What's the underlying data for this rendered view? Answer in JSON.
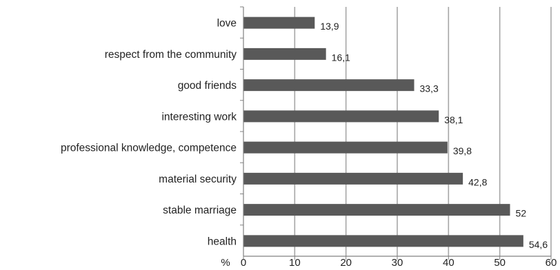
{
  "chart_data": {
    "type": "bar",
    "orientation": "horizontal",
    "categories": [
      "love",
      "respect from the community",
      "good friends",
      "interesting work",
      "professional knowledge, competence",
      "material security",
      "stable marriage",
      "health"
    ],
    "values": [
      13.9,
      16.1,
      33.3,
      38.1,
      39.8,
      42.8,
      52,
      54.6
    ],
    "data_labels": [
      "13,9",
      "16,1",
      "33,3",
      "38,1",
      "39,8",
      "42,8",
      "52",
      "54,6"
    ],
    "x_ticks": [
      "0",
      "10",
      "20",
      "30",
      "40",
      "50",
      "60"
    ],
    "xlim": [
      0,
      60
    ],
    "x_unit_label": "%",
    "title": "",
    "xlabel": "",
    "ylabel": "",
    "grid": "vertical",
    "legend": "none",
    "colors": {
      "bar": "#595959",
      "grid": "#a6a6a6",
      "axis": "#808080",
      "text": "#222222"
    }
  }
}
